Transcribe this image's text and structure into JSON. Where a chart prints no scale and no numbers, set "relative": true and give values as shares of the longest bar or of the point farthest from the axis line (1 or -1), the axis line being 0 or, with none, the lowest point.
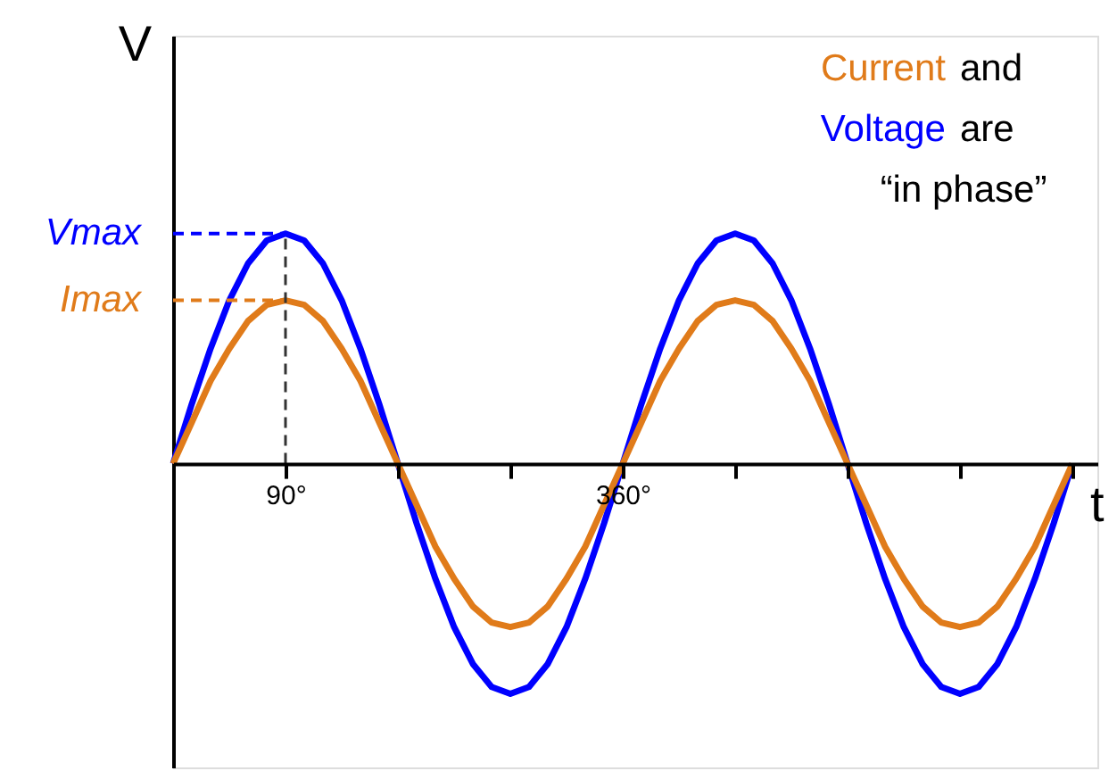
{
  "chart_data": {
    "type": "line",
    "relative": true,
    "xlabel": "t",
    "ylabel": "V",
    "x": [
      0,
      15,
      30,
      45,
      60,
      75,
      90,
      105,
      120,
      135,
      150,
      165,
      180,
      195,
      210,
      225,
      240,
      255,
      270,
      285,
      300,
      315,
      330,
      345,
      360,
      375,
      390,
      405,
      420,
      435,
      450,
      465,
      480,
      495,
      510,
      525,
      540,
      555,
      570,
      585,
      600,
      615,
      630,
      645,
      660,
      675,
      690,
      705,
      720
    ],
    "xlim": [
      0,
      740
    ],
    "xticks": [
      {
        "value": 90,
        "label": "90°"
      },
      {
        "value": 180,
        "label": null
      },
      {
        "value": 270,
        "label": null
      },
      {
        "value": 360,
        "label": "360°"
      },
      {
        "value": 450,
        "label": null
      },
      {
        "value": 540,
        "label": null
      },
      {
        "value": 630,
        "label": null
      },
      {
        "value": 720,
        "label": null
      }
    ],
    "series": [
      {
        "name": "Voltage",
        "color": "#0000ff",
        "values": [
          0,
          0.26,
          0.5,
          0.71,
          0.87,
          0.97,
          1,
          0.97,
          0.87,
          0.71,
          0.5,
          0.26,
          0,
          -0.26,
          -0.5,
          -0.71,
          -0.87,
          -0.97,
          -1,
          -0.97,
          -0.87,
          -0.71,
          -0.5,
          -0.26,
          0,
          0.26,
          0.5,
          0.71,
          0.87,
          0.97,
          1,
          0.97,
          0.87,
          0.71,
          0.5,
          0.26,
          0,
          -0.26,
          -0.5,
          -0.71,
          -0.87,
          -0.97,
          -1,
          -0.97,
          -0.87,
          -0.71,
          -0.5,
          -0.26,
          0
        ]
      },
      {
        "name": "Current",
        "color": "#e07b1a",
        "values": [
          0,
          0.18,
          0.36,
          0.5,
          0.62,
          0.69,
          0.71,
          0.69,
          0.62,
          0.5,
          0.36,
          0.18,
          0,
          -0.18,
          -0.36,
          -0.5,
          -0.62,
          -0.69,
          -0.71,
          -0.69,
          -0.62,
          -0.5,
          -0.36,
          -0.18,
          0,
          0.18,
          0.36,
          0.5,
          0.62,
          0.69,
          0.71,
          0.69,
          0.62,
          0.5,
          0.36,
          0.18,
          0,
          -0.18,
          -0.36,
          -0.5,
          -0.62,
          -0.69,
          -0.71,
          -0.69,
          -0.62,
          -0.5,
          -0.36,
          -0.18,
          0
        ]
      }
    ],
    "annotations": [
      "and",
      "are",
      "“in phase”",
      "Vmax",
      "Imax"
    ],
    "ref_lines": [
      {
        "axis": "x",
        "value": 90,
        "color": "#333333",
        "line_style": "dashed"
      }
    ],
    "grid": false,
    "marker": "none",
    "line_style": "solid"
  }
}
